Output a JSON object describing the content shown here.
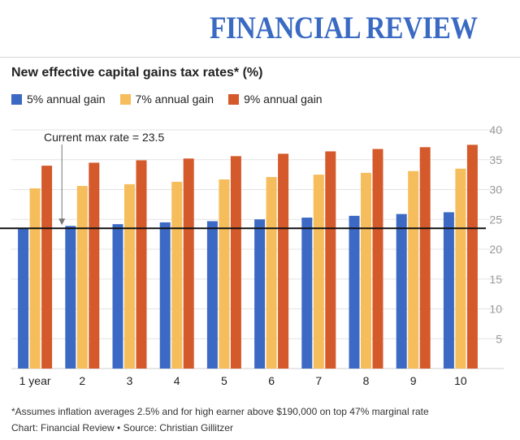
{
  "masthead": "FINANCIAL REVIEW",
  "footnote": "*Assumes inflation averages 2.5% and for high earner above $190,000 on top 47% marginal rate",
  "credit": "Chart: Financial Review • Source: Christian Gillitzer",
  "chart_data": {
    "type": "bar",
    "title": "New effective capital gains tax rates* (%)",
    "categories": [
      "1 year",
      "2",
      "3",
      "4",
      "5",
      "6",
      "7",
      "8",
      "9",
      "10"
    ],
    "series": [
      {
        "name": "5% annual gain",
        "color": "#3c69c4",
        "values": [
          23.6,
          23.9,
          24.2,
          24.5,
          24.7,
          25.0,
          25.3,
          25.6,
          25.9,
          26.2
        ]
      },
      {
        "name": "7% annual gain",
        "color": "#f5bd5b",
        "values": [
          30.2,
          30.6,
          30.9,
          31.3,
          31.7,
          32.1,
          32.5,
          32.8,
          33.1,
          33.5
        ]
      },
      {
        "name": "9% annual gain",
        "color": "#d4592b",
        "values": [
          34.0,
          34.5,
          34.9,
          35.2,
          35.6,
          36.0,
          36.4,
          36.8,
          37.1,
          37.5
        ]
      }
    ],
    "ylim": [
      0,
      40
    ],
    "yticks": [
      5,
      10,
      15,
      20,
      25,
      30,
      35,
      40
    ],
    "y_axis_side": "right",
    "grid": true,
    "legend_position": "top-left",
    "reference_line": {
      "value": 23.5,
      "label": "Current max rate = 23.5"
    }
  }
}
